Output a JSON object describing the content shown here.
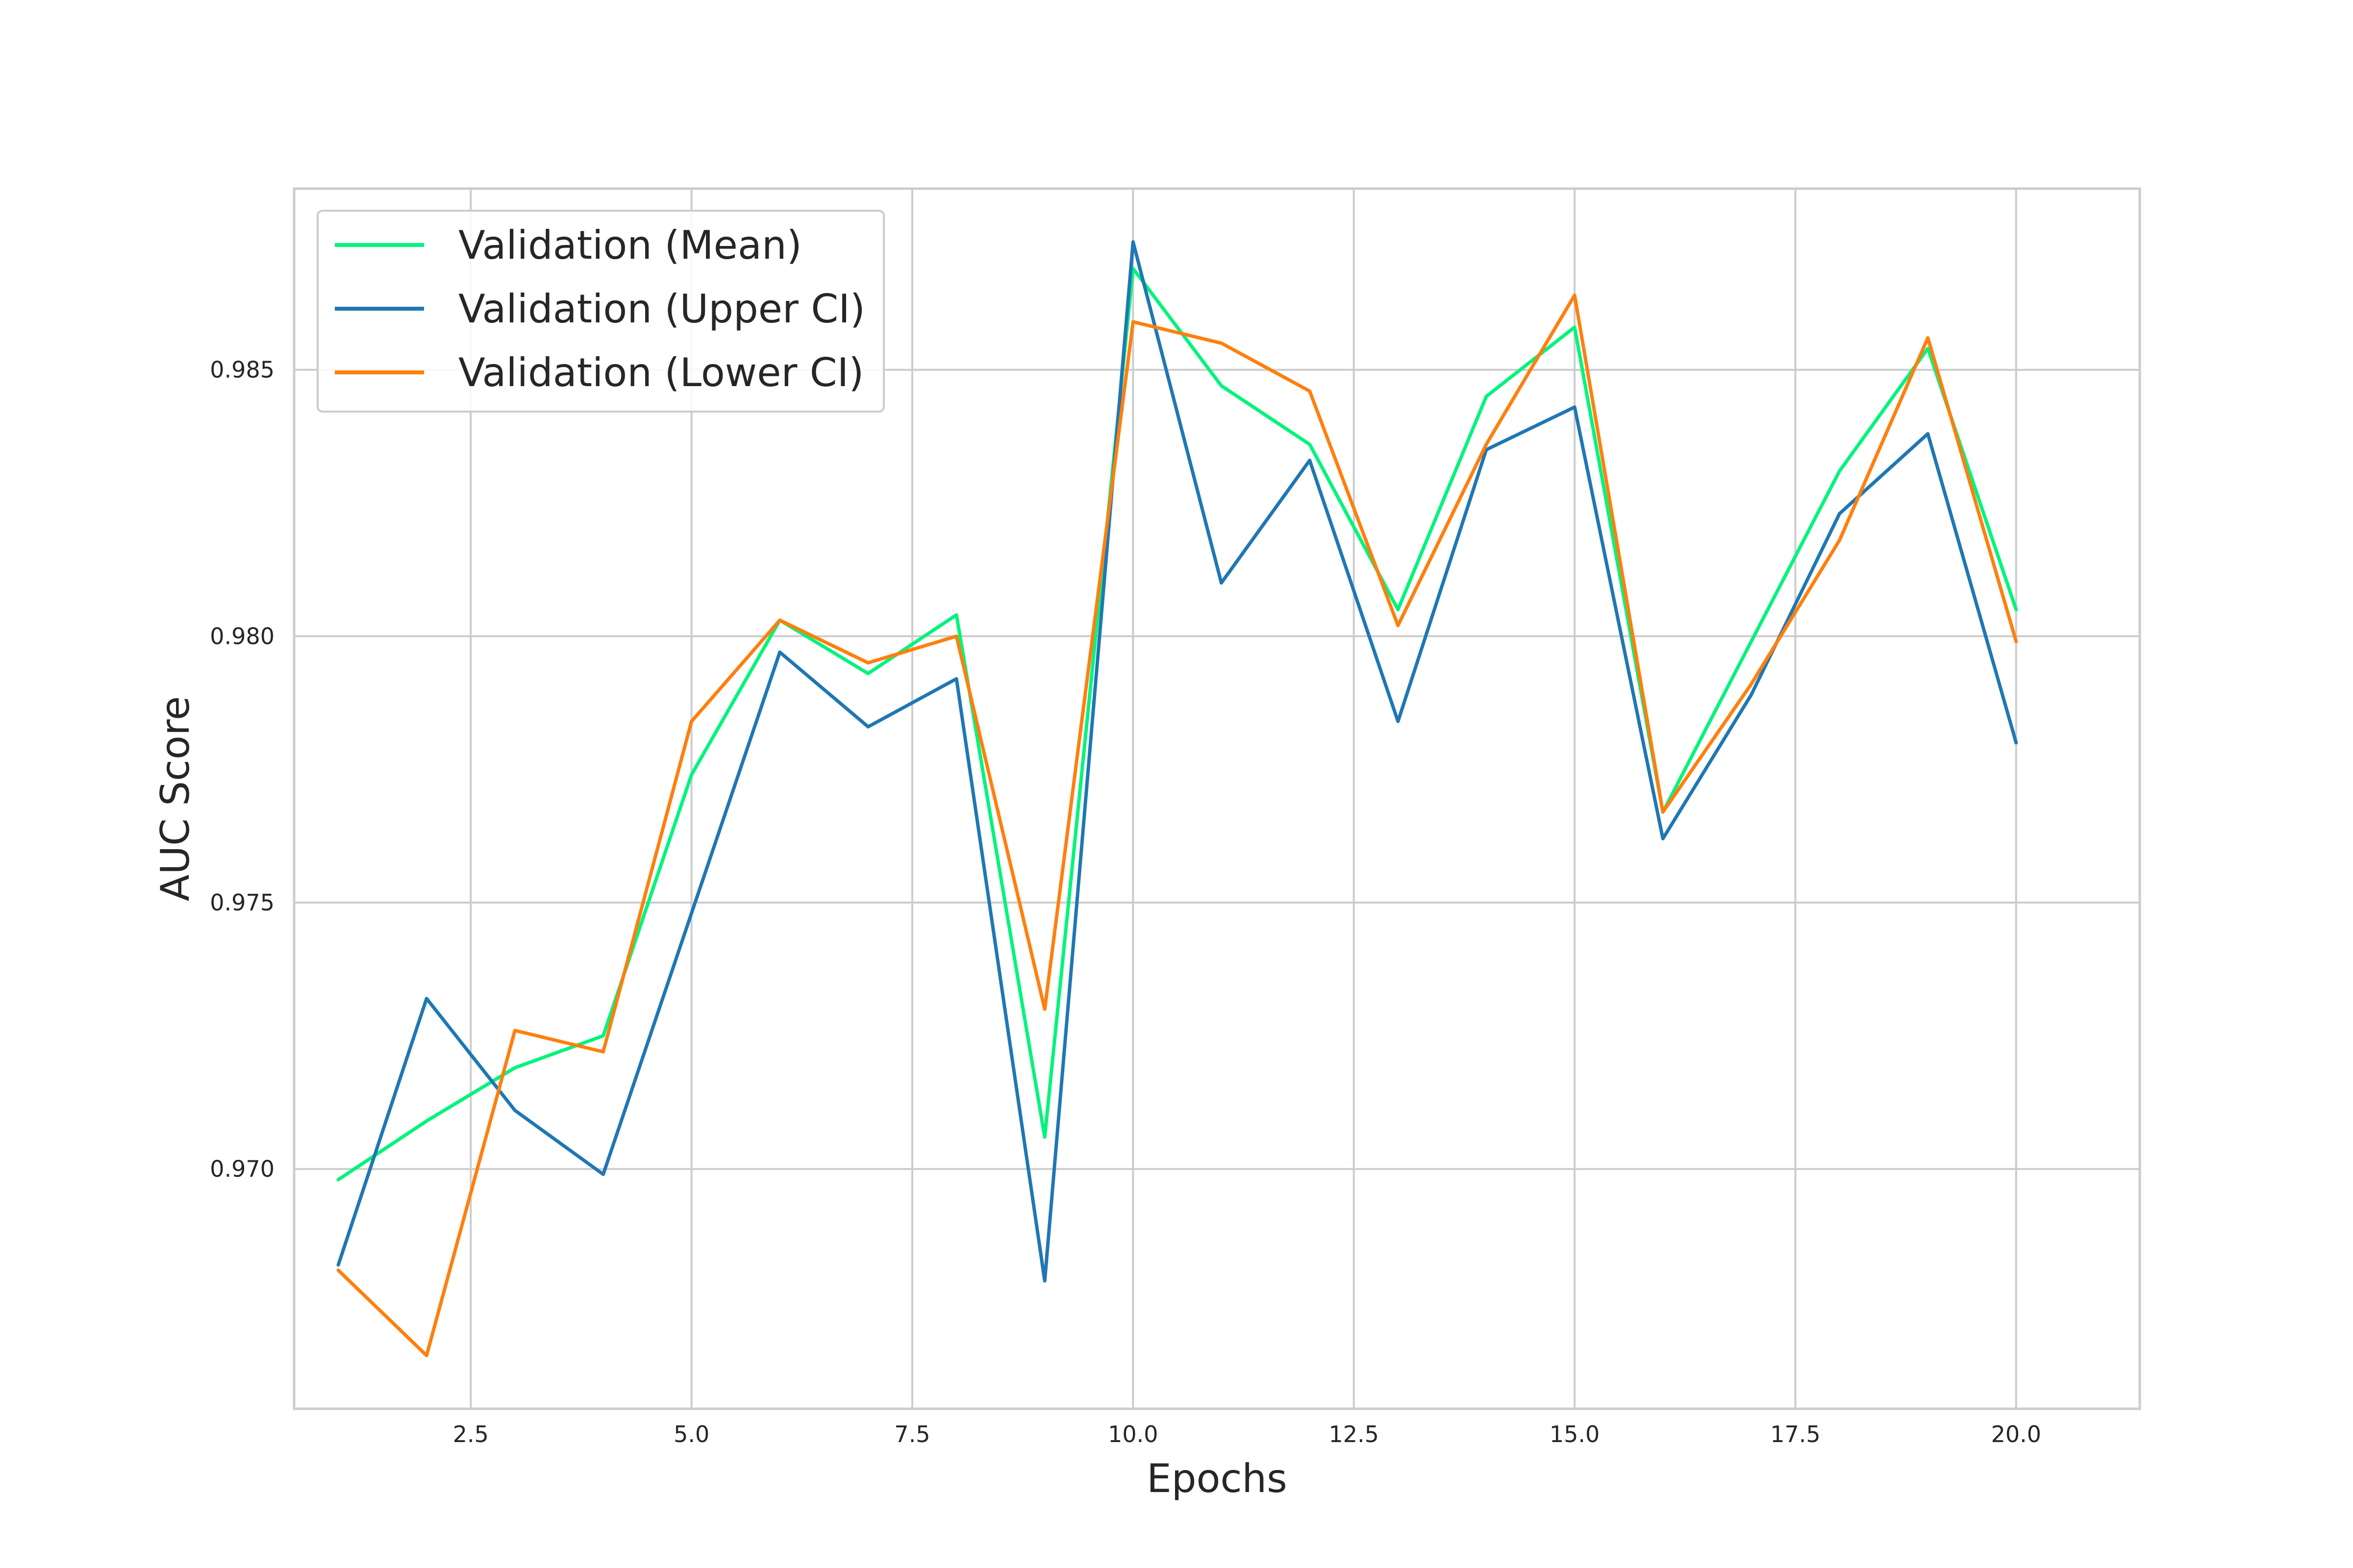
{
  "chart_data": {
    "type": "line",
    "title": "",
    "xlabel": "Epochs",
    "ylabel": "AUC Score",
    "xlim": [
      0.5,
      21.4
    ],
    "ylim": [
      0.9655,
      0.9884
    ],
    "xticks": [
      2.5,
      5.0,
      7.5,
      10.0,
      12.5,
      15.0,
      17.5,
      20.0
    ],
    "xtick_labels": [
      "2.5",
      "5.0",
      "7.5",
      "10.0",
      "12.5",
      "15.0",
      "17.5",
      "20.0"
    ],
    "yticks": [
      0.97,
      0.975,
      0.98,
      0.985
    ],
    "ytick_labels": [
      "0.970",
      "0.975",
      "0.980",
      "0.985"
    ],
    "grid": true,
    "legend_position": "top-left",
    "x": [
      1,
      2,
      3,
      4,
      5,
      6,
      7,
      8,
      9,
      10,
      11,
      12,
      13,
      14,
      15,
      16,
      17,
      18,
      19,
      20
    ],
    "series": [
      {
        "name": "Validation (Mean)",
        "color": "#00f47b",
        "values": [
          0.9698,
          0.9709,
          0.9719,
          0.9725,
          0.9774,
          0.9803,
          0.9793,
          0.9804,
          0.9706,
          0.9869,
          0.9847,
          0.9836,
          0.9805,
          0.9845,
          0.9858,
          0.9767,
          0.9799,
          0.9831,
          0.9854,
          0.9805
        ]
      },
      {
        "name": "Validation (Upper CI)",
        "color": "#1f77b4",
        "values": [
          0.9682,
          0.9732,
          0.9711,
          0.9699,
          0.9748,
          0.9797,
          0.9783,
          0.9792,
          0.9679,
          0.9874,
          0.981,
          0.9833,
          0.9784,
          0.9835,
          0.9843,
          0.9762,
          0.9789,
          0.9823,
          0.9838,
          0.978
        ]
      },
      {
        "name": "Validation (Lower CI)",
        "color": "#ff7f0e",
        "values": [
          0.9681,
          0.9665,
          0.9726,
          0.9722,
          0.9784,
          0.9803,
          0.9795,
          0.98,
          0.973,
          0.9859,
          0.9855,
          0.9846,
          0.9802,
          0.9836,
          0.9864,
          0.9767,
          0.9791,
          0.9818,
          0.9856,
          0.9799
        ]
      }
    ]
  }
}
